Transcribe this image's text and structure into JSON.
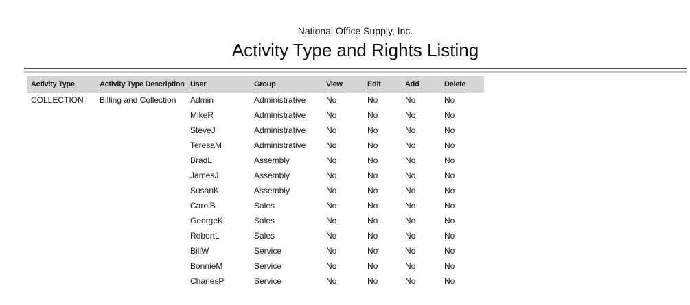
{
  "report": {
    "company_name": "National Office Supply, Inc.",
    "title": "Activity Type and Rights Listing"
  },
  "table": {
    "columns": [
      {
        "key": "activity_type",
        "label": "Activity Type"
      },
      {
        "key": "description",
        "label": "Activity Type Description"
      },
      {
        "key": "user",
        "label": "User"
      },
      {
        "key": "group",
        "label": "Group"
      },
      {
        "key": "view",
        "label": "View"
      },
      {
        "key": "edit",
        "label": "Edit"
      },
      {
        "key": "add",
        "label": "Add"
      },
      {
        "key": "delete",
        "label": "Delete"
      }
    ],
    "rows": [
      {
        "activity_type": "COLLECTION",
        "description": "Billing and Collection",
        "user": "Admin",
        "group": "Administrative",
        "view": "No",
        "edit": "No",
        "add": "No",
        "delete": "No"
      },
      {
        "activity_type": "",
        "description": "",
        "user": "MikeR",
        "group": "Administrative",
        "view": "No",
        "edit": "No",
        "add": "No",
        "delete": "No"
      },
      {
        "activity_type": "",
        "description": "",
        "user": "SteveJ",
        "group": "Administrative",
        "view": "No",
        "edit": "No",
        "add": "No",
        "delete": "No"
      },
      {
        "activity_type": "",
        "description": "",
        "user": "TeresaM",
        "group": "Administrative",
        "view": "No",
        "edit": "No",
        "add": "No",
        "delete": "No"
      },
      {
        "activity_type": "",
        "description": "",
        "user": "BradL",
        "group": "Assembly",
        "view": "No",
        "edit": "No",
        "add": "No",
        "delete": "No"
      },
      {
        "activity_type": "",
        "description": "",
        "user": "JamesJ",
        "group": "Assembly",
        "view": "No",
        "edit": "No",
        "add": "No",
        "delete": "No"
      },
      {
        "activity_type": "",
        "description": "",
        "user": "SusanK",
        "group": "Assembly",
        "view": "No",
        "edit": "No",
        "add": "No",
        "delete": "No"
      },
      {
        "activity_type": "",
        "description": "",
        "user": "CarolB",
        "group": "Sales",
        "view": "No",
        "edit": "No",
        "add": "No",
        "delete": "No"
      },
      {
        "activity_type": "",
        "description": "",
        "user": "GeorgeK",
        "group": "Sales",
        "view": "No",
        "edit": "No",
        "add": "No",
        "delete": "No"
      },
      {
        "activity_type": "",
        "description": "",
        "user": "RobertL",
        "group": "Sales",
        "view": "No",
        "edit": "No",
        "add": "No",
        "delete": "No"
      },
      {
        "activity_type": "",
        "description": "",
        "user": "BillW",
        "group": "Service",
        "view": "No",
        "edit": "No",
        "add": "No",
        "delete": "No"
      },
      {
        "activity_type": "",
        "description": "",
        "user": "BonnieM",
        "group": "Service",
        "view": "No",
        "edit": "No",
        "add": "No",
        "delete": "No"
      },
      {
        "activity_type": "",
        "description": "",
        "user": "CharlesP",
        "group": "Service",
        "view": "No",
        "edit": "No",
        "add": "No",
        "delete": "No"
      }
    ]
  },
  "colors": {
    "header_band": "#d5d5d5",
    "rule_dark": "#4d4d4d",
    "rule_light": "#c6c6c6",
    "text": "#1a1a1a"
  }
}
